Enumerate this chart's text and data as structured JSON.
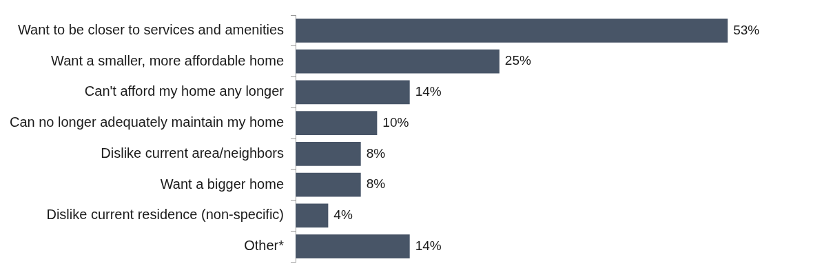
{
  "chart_data": {
    "type": "bar",
    "orientation": "horizontal",
    "categories": [
      "Want to be closer to services and amenities",
      "Want a smaller, more affordable home",
      "Can't afford my home any longer",
      "Can no longer adequately maintain my home",
      "Dislike current area/neighbors",
      "Want a bigger home",
      "Dislike current residence (non-specific)",
      "Other*"
    ],
    "values": [
      53,
      25,
      14,
      10,
      8,
      8,
      4,
      14
    ],
    "value_labels": [
      "53%",
      "25%",
      "14%",
      "10%",
      "8%",
      "8%",
      "4%",
      "14%"
    ],
    "color": "#485567",
    "tick_labels": "y",
    "grid": false
  }
}
